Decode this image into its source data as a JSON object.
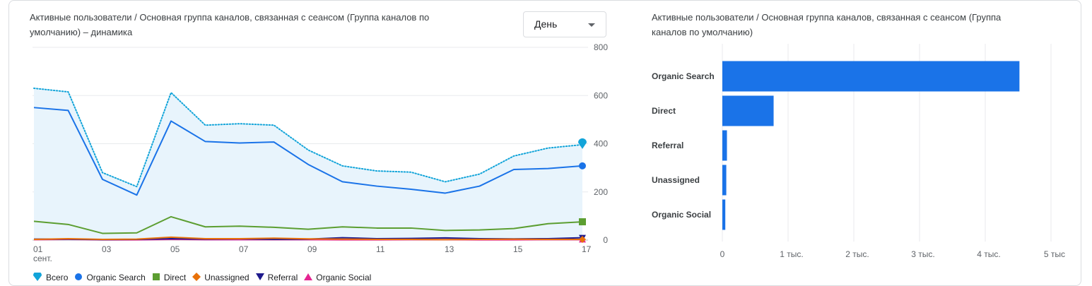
{
  "line_panel": {
    "title_line1": "Активные пользователи / Основная группа каналов, связанная с сеансом (Группа каналов по",
    "title_line2": "умолчанию) – динамика",
    "granularity": "День"
  },
  "bar_panel": {
    "title_line1": "Активные пользователи / Основная группа каналов, связанная с сеансом (Группа",
    "title_line2": "каналов по умолчанию)"
  },
  "chart_data": [
    {
      "type": "line",
      "x": [
        "01",
        "02",
        "03",
        "04",
        "05",
        "06",
        "07",
        "08",
        "09",
        "10",
        "11",
        "12",
        "13",
        "14",
        "15",
        "16",
        "17"
      ],
      "x_tick_labels": [
        "01",
        "03",
        "05",
        "07",
        "09",
        "11",
        "13",
        "15",
        "17"
      ],
      "x_sublabel": "сент.",
      "ylim": [
        0,
        800
      ],
      "y_ticks": [
        "0",
        "200",
        "400",
        "600",
        "800"
      ],
      "series": [
        {
          "name": "Всего",
          "color": "#12a4d9",
          "style": "dotted",
          "values": [
            630,
            615,
            280,
            222,
            612,
            477,
            483,
            477,
            374,
            308,
            287,
            282,
            242,
            274,
            349,
            382,
            396
          ]
        },
        {
          "name": "Organic Search",
          "color": "#1a73e8",
          "values": [
            550,
            538,
            252,
            187,
            494,
            409,
            403,
            407,
            314,
            242,
            224,
            211,
            195,
            224,
            293,
            297,
            308
          ]
        },
        {
          "name": "Direct",
          "color": "#5c9e31",
          "values": [
            78,
            65,
            28,
            30,
            97,
            55,
            58,
            53,
            45,
            55,
            50,
            50,
            40,
            42,
            48,
            68,
            76
          ]
        },
        {
          "name": "Unassigned",
          "color": "#e8710a",
          "values": [
            3,
            6,
            3,
            4,
            12,
            6,
            6,
            8,
            5,
            4,
            3,
            3,
            2,
            3,
            4,
            3,
            3
          ]
        },
        {
          "name": "Referral",
          "color": "#1e1a8c",
          "values": [
            4,
            4,
            2,
            3,
            6,
            4,
            5,
            3,
            4,
            10,
            6,
            7,
            9,
            6,
            5,
            6,
            10
          ]
        },
        {
          "name": "Organic Social",
          "color": "#e52592",
          "values": [
            2,
            3,
            1,
            1,
            3,
            2,
            2,
            2,
            2,
            1,
            1,
            2,
            2,
            1,
            1,
            2,
            2
          ]
        }
      ]
    },
    {
      "type": "bar",
      "orientation": "horizontal",
      "categories": [
        "Organic Search",
        "Direct",
        "Referral",
        "Unassigned",
        "Organic Social"
      ],
      "values": [
        4520,
        780,
        70,
        60,
        45
      ],
      "xlim": [
        0,
        5000
      ],
      "x_tick_labels": [
        "0",
        "1 тыс.",
        "2 тыс.",
        "3 тыс.",
        "4 тыс.",
        "5 тыс"
      ],
      "color": "#1a73e8"
    }
  ]
}
